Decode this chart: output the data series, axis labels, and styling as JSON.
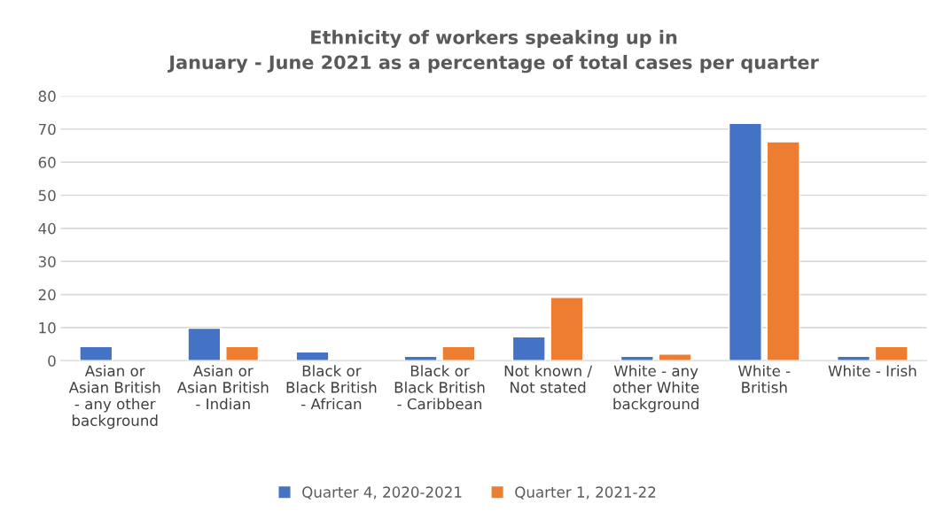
{
  "chart_data": {
    "type": "bar",
    "title": "Ethnicity of workers speaking up in\nJanuary - June 2021 as a percentage of total cases per quarter",
    "categories": [
      "Asian or\nAsian British\n- any other\nbackground",
      "Asian or\nAsian British\n- Indian",
      "Black or\nBlack British\n- African",
      "Black or\nBlack British\n- Caribbean",
      "Not known /\nNot stated",
      "White - any\nother White\nbackground",
      "White -\nBritish",
      "White - Irish"
    ],
    "series": [
      {
        "name": "Quarter 4, 2020-2021",
        "color": "#4472c4",
        "values": [
          4.3,
          9.8,
          2.7,
          1.3,
          7.2,
          1.3,
          71.7,
          1.3
        ]
      },
      {
        "name": "Quarter 1, 2021-22",
        "color": "#ed7d31",
        "values": [
          null,
          4.3,
          null,
          4.3,
          19.1,
          2.0,
          66.2,
          4.3
        ]
      }
    ],
    "ylim": [
      0,
      80
    ],
    "yticks": [
      0,
      10,
      20,
      30,
      40,
      50,
      60,
      70,
      80
    ],
    "grid": "y",
    "legend": "bottom"
  }
}
